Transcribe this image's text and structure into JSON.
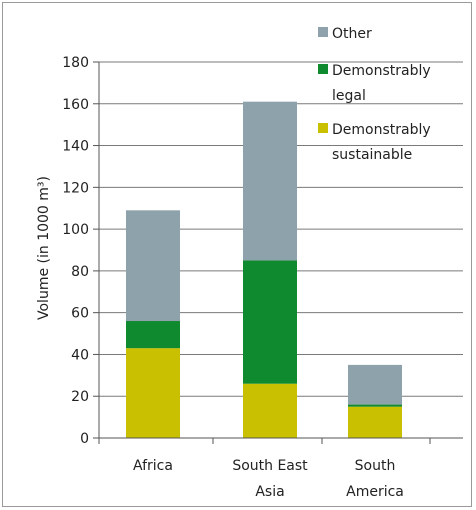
{
  "chart_data": {
    "type": "bar",
    "stacked": true,
    "categories": [
      "Africa",
      "South East Asia",
      "South America"
    ],
    "category_lines": [
      [
        "Africa"
      ],
      [
        "South East",
        "Asia"
      ],
      [
        "South",
        "America"
      ]
    ],
    "series": [
      {
        "name": "Demonstrably sustainable",
        "legend_lines": [
          "Demonstrably",
          "sustainable"
        ],
        "color": "#c8c000",
        "values": [
          43,
          26,
          15
        ]
      },
      {
        "name": "Demonstrably legal",
        "legend_lines": [
          "Demonstrably",
          "legal"
        ],
        "color": "#0f8a2f",
        "values": [
          13,
          59,
          1
        ]
      },
      {
        "name": "Other",
        "legend_lines": [
          "Other"
        ],
        "color": "#8ea2ab",
        "values": [
          53,
          76,
          19
        ]
      }
    ],
    "legend_order": [
      "Other",
      "Demonstrably legal",
      "Demonstrably sustainable"
    ],
    "ylabel": "Volume (in 1000 m³)",
    "xlabel": "",
    "title": "",
    "ylim": [
      0,
      180
    ],
    "yticks": [
      0,
      20,
      40,
      60,
      80,
      100,
      120,
      140,
      160,
      180
    ],
    "grid": true,
    "legend_position": "top-right"
  }
}
